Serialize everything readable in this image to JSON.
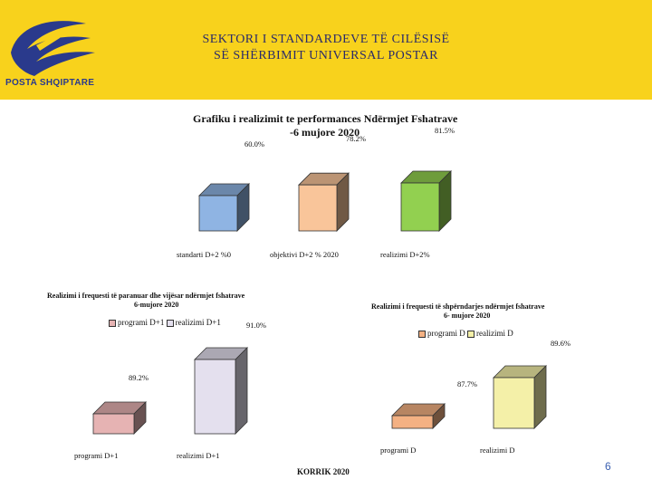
{
  "header": {
    "title_line1": "SEKTORI I STANDARDEVE TË CILËSISË",
    "title_line2": "SË SHËRBIMIT UNIVERSAL POSTAR",
    "logo_text": "POSTA SHQIPTARE",
    "logo_icon": "bird-wing-icon",
    "band_color": "#f8d21c"
  },
  "footer": {
    "date_label": "KORRIK 2020",
    "page_number": "6"
  },
  "chart_data": [
    {
      "type": "bar",
      "title_line1": "Grafiku i realizimit te performances Ndërmjet  Fshatrave",
      "title_line2": "-6 mujore 2020",
      "categories": [
        "standarti D+2 %0",
        "objektivi D+2 % 2020",
        "realizimi D+2%"
      ],
      "values": [
        60.0,
        78.2,
        81.5
      ],
      "value_labels": [
        "60.0%",
        "78.2%",
        "81.5%"
      ],
      "colors": [
        "#8fb4e3",
        "#f9c59a",
        "#92d050"
      ]
    },
    {
      "type": "bar",
      "title_line1": "Realizimi i frequesti të paranuar dhe vijësar ndërmjet fshatrave",
      "title_line2": "6-mujore 2020",
      "legend": [
        "programi D+1",
        "realizimi D+1"
      ],
      "categories": [
        "programi D+1",
        "realizimi D+1"
      ],
      "values": [
        89.2,
        91.0
      ],
      "value_labels": [
        "89.2%",
        "91.0%"
      ],
      "colors": [
        "#e6b3b3",
        "#e4e0ee"
      ]
    },
    {
      "type": "bar",
      "title_line1": "Realizimi i frequesti të shpërndarjes ndërmjet fshatrave",
      "title_line2": "6- mujore 2020",
      "legend": [
        "programi D",
        "realizimi D"
      ],
      "categories": [
        "programi D",
        "realizimi D"
      ],
      "values": [
        87.7,
        89.6
      ],
      "value_labels": [
        "87.7%",
        "89.6%"
      ],
      "colors": [
        "#f4b183",
        "#f4f0a8"
      ]
    }
  ]
}
